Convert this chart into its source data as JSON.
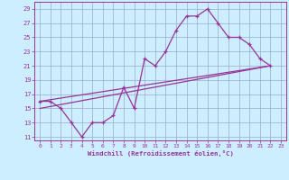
{
  "xlabel": "Windchill (Refroidissement éolien,°C)",
  "bg_color": "#cceeff",
  "grid_color": "#99aacc",
  "line_color": "#993399",
  "xlim": [
    -0.5,
    23.5
  ],
  "ylim": [
    10.5,
    30.0
  ],
  "xticks": [
    0,
    1,
    2,
    3,
    4,
    5,
    6,
    7,
    8,
    9,
    10,
    11,
    12,
    13,
    14,
    15,
    16,
    17,
    18,
    19,
    20,
    21,
    22,
    23
  ],
  "yticks": [
    11,
    13,
    15,
    17,
    19,
    21,
    23,
    25,
    27,
    29
  ],
  "line1_x": [
    0,
    1,
    2,
    3,
    4,
    5,
    6,
    7,
    8,
    9,
    10,
    11,
    12,
    13,
    14,
    15,
    16,
    17,
    18,
    19,
    20,
    21,
    22
  ],
  "line1_y": [
    16,
    16,
    15,
    13,
    11,
    13,
    13,
    14,
    18,
    15,
    22,
    21,
    23,
    26,
    28,
    28,
    29,
    27,
    25,
    25,
    24,
    22,
    21
  ],
  "line2_x": [
    0,
    22
  ],
  "line2_y": [
    16,
    21
  ],
  "line3_x": [
    0,
    22
  ],
  "line3_y": [
    15,
    21
  ]
}
